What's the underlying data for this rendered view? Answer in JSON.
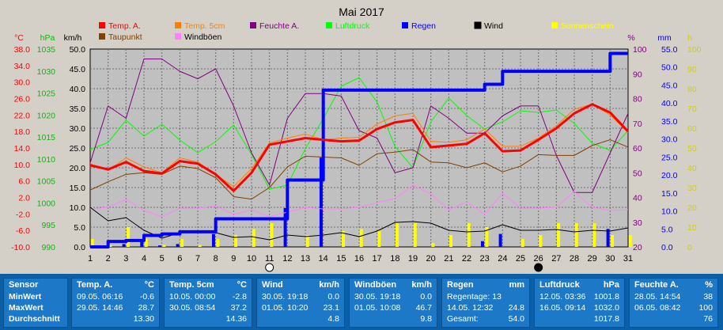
{
  "chart_data": {
    "type": "line",
    "title": "Mai 2017",
    "x": [
      1,
      2,
      3,
      4,
      5,
      6,
      7,
      8,
      9,
      10,
      11,
      12,
      13,
      14,
      15,
      16,
      17,
      18,
      19,
      20,
      21,
      22,
      23,
      24,
      25,
      26,
      27,
      28,
      29,
      30,
      31
    ],
    "axes": {
      "temp": {
        "label": "°C",
        "color": "#ff0000",
        "ticks": [
          "38.0",
          "34.0",
          "30.0",
          "26.0",
          "22.0",
          "18.0",
          "14.0",
          "10.0",
          "6.0",
          "2.0",
          "-2.0",
          "-6.0",
          "-10.0"
        ],
        "range": [
          -10,
          38
        ]
      },
      "press": {
        "label": "hPa",
        "color": "#00c000",
        "ticks": [
          "1035",
          "1030",
          "1025",
          "1020",
          "1015",
          "1010",
          "1005",
          "1000",
          "995",
          "990"
        ],
        "range": [
          990,
          1040
        ]
      },
      "wind": {
        "label": "km/h",
        "color": "#000000",
        "ticks": [
          "50.0",
          "45.0",
          "40.0",
          "35.0",
          "30.0",
          "25.0",
          "20.0",
          "15.0",
          "10.0",
          "5.0",
          "0.0"
        ],
        "range": [
          0,
          50
        ]
      },
      "hum": {
        "label": "%",
        "color": "#800080",
        "ticks": [
          "100",
          "90",
          "80",
          "70",
          "60",
          "50",
          "40",
          "30",
          "20"
        ],
        "range": [
          20,
          100
        ]
      },
      "rain": {
        "label": "mm",
        "color": "#0000ff",
        "ticks": [
          "55.0",
          "50.0",
          "45.0",
          "40.0",
          "35.0",
          "30.0",
          "25.0",
          "20.0",
          "15.0",
          "10.0",
          "5.0",
          "0.0"
        ],
        "range": [
          0,
          55
        ]
      },
      "sun": {
        "label": "h",
        "color": "#d0d000",
        "ticks": [
          "100",
          "90",
          "80",
          "70",
          "60",
          "50",
          "40",
          "30",
          "20",
          "10",
          "0"
        ],
        "range": [
          0,
          100
        ]
      }
    },
    "legend": [
      {
        "name": "Temp. A.",
        "color": "#ff0000",
        "text_color": "#ff0000"
      },
      {
        "name": "Temp. 5cm",
        "color": "#ff8000",
        "text_color": "#ff8000"
      },
      {
        "name": "Feuchte A.",
        "color": "#800080",
        "text_color": "#800080"
      },
      {
        "name": "Luftdruck",
        "color": "#00ff00",
        "text_color": "#00ff00"
      },
      {
        "name": "Regen",
        "color": "#0000ff",
        "text_color": "#0000ff"
      },
      {
        "name": "Wind",
        "color": "#000000",
        "text_color": "#000000"
      },
      {
        "name": "Sonnenschein",
        "color": "#ffff00",
        "text_color": "#ffff00"
      },
      {
        "name": "Taupunkt",
        "color": "#804000",
        "text_color": "#804000"
      },
      {
        "name": "Windböen",
        "color": "#ff80ff",
        "text_color": "#000000"
      }
    ],
    "series": [
      {
        "name": "Temp. A.",
        "axis": "temp",
        "color": "#ff0000",
        "width": 3,
        "values": [
          9.8,
          8.8,
          10.6,
          8.4,
          7.8,
          10.8,
          10.2,
          7.6,
          3.6,
          8.0,
          14.8,
          15.6,
          16.4,
          16.0,
          15.6,
          15.8,
          18.6,
          20.2,
          20.8,
          14.2,
          14.6,
          15.0,
          17.6,
          13.2,
          13.4,
          16.0,
          18.8,
          22.4,
          24.6,
          22.6,
          18.0
        ]
      },
      {
        "name": "Temp. 5cm",
        "axis": "temp",
        "color": "#ff8000",
        "width": 1,
        "values": [
          10.2,
          8.6,
          11.6,
          9.4,
          8.0,
          11.6,
          10.6,
          7.6,
          4.6,
          9.0,
          15.2,
          16.4,
          17.4,
          16.0,
          16.4,
          16.6,
          19.8,
          21.8,
          22.4,
          15.6,
          15.4,
          16.0,
          18.6,
          14.4,
          14.4,
          16.4,
          19.4,
          23.4,
          24.6,
          22.0,
          17.8
        ]
      },
      {
        "name": "Taupunkt",
        "axis": "temp",
        "color": "#804000",
        "width": 1,
        "values": [
          3.8,
          5.8,
          7.6,
          8.0,
          7.6,
          9.6,
          9.0,
          6.8,
          2.2,
          1.6,
          4.4,
          9.4,
          12.0,
          11.8,
          11.6,
          9.8,
          12.6,
          13.0,
          13.6,
          10.6,
          10.4,
          9.2,
          10.4,
          8.2,
          9.6,
          12.4,
          12.2,
          12.2,
          14.6,
          16.0,
          14.2
        ]
      },
      {
        "name": "Feuchte A.",
        "axis": "hum",
        "color": "#800080",
        "width": 1,
        "values": [
          54,
          77,
          72,
          96,
          96,
          91,
          88,
          92,
          77,
          58,
          45,
          72,
          82,
          82,
          81,
          67,
          64,
          50,
          52,
          77,
          72,
          66,
          66,
          73,
          77,
          77,
          57,
          42,
          42,
          58,
          74
        ]
      },
      {
        "name": "Luftdruck",
        "axis": "press",
        "color": "#00ff00",
        "width": 1,
        "values": [
          1014.6,
          1016.4,
          1022.0,
          1018.0,
          1021.0,
          1017.0,
          1013.8,
          1016.6,
          1020.8,
          1013.4,
          1004.6,
          1005.6,
          1014.8,
          1022.4,
          1030.6,
          1032.8,
          1026.6,
          1015.4,
          1010.0,
          1021.6,
          1027.6,
          1023.2,
          1019.8,
          1021.6,
          1024.4,
          1024.0,
          1024.6,
          1021.2,
          1016.2,
          1014.4,
          1019.4
        ]
      },
      {
        "name": "Wind",
        "axis": "wind",
        "color": "#000000",
        "width": 1,
        "values": [
          10.0,
          6.6,
          7.4,
          4.2,
          2.2,
          3.6,
          3.6,
          3.6,
          2.4,
          2.6,
          1.8,
          3.0,
          2.6,
          3.0,
          3.6,
          2.6,
          4.0,
          6.2,
          6.4,
          6.0,
          4.2,
          3.8,
          4.0,
          5.6,
          4.2,
          4.2,
          4.4,
          3.8,
          4.2,
          4.0,
          4.8
        ]
      },
      {
        "name": "Windböen",
        "axis": "wind",
        "color": "#ff80ff",
        "width": 1,
        "values": [
          9.6,
          10.0,
          12.0,
          9.2,
          7.6,
          9.8,
          9.8,
          10.4,
          8.2,
          9.4,
          7.6,
          8.8,
          10.0,
          9.6,
          9.6,
          10.0,
          11.2,
          12.2,
          15.6,
          13.4,
          9.4,
          11.4,
          8.2,
          13.6,
          9.8,
          9.8,
          10.0,
          14.0,
          10.0,
          9.2,
          9.4
        ]
      },
      {
        "name": "Regen",
        "axis": "rain",
        "color": "#0000ff",
        "width": 4,
        "step": true,
        "values": [
          0.0,
          1.5,
          1.8,
          3.2,
          3.6,
          4.2,
          4.2,
          7.8,
          7.8,
          7.8,
          7.8,
          18.6,
          18.6,
          43.6,
          43.6,
          43.6,
          43.6,
          43.6,
          43.6,
          43.6,
          43.6,
          43.6,
          45.2,
          48.8,
          48.8,
          48.8,
          48.8,
          48.8,
          48.8,
          53.8,
          53.8
        ]
      }
    ],
    "bars": [
      {
        "name": "Sonnenschein",
        "axis": "sun",
        "color": "#ffff00",
        "offset": 0.12,
        "values": [
          4,
          1,
          10,
          4,
          1,
          4,
          1,
          4,
          6,
          9,
          12,
          0,
          6,
          0,
          8,
          9,
          8,
          12,
          12,
          2,
          6,
          12,
          10,
          0,
          4,
          6,
          12,
          12,
          12,
          6,
          6
        ]
      },
      {
        "name": "Regen täglich",
        "axis": "rain",
        "color": "#0000ff",
        "offset": -0.12,
        "values": [
          0,
          0.4,
          0.8,
          1.4,
          0.4,
          0.8,
          0,
          3.6,
          0,
          0,
          0,
          10.8,
          0,
          24.8,
          0,
          0,
          0,
          0,
          0,
          0,
          0,
          0,
          1.6,
          3.6,
          0,
          0,
          0,
          0,
          0,
          5.0,
          0
        ]
      }
    ],
    "moon_markers": [
      {
        "day": 11,
        "phase": "full"
      },
      {
        "day": 26,
        "phase": "new"
      }
    ]
  },
  "stats": {
    "labels": {
      "header": "Sensor",
      "min": "MinWert",
      "max": "MaxWert",
      "avg": "Durchschnitt"
    },
    "panels": [
      {
        "title": "Temp. A.",
        "unit": "°C",
        "min_date": "09.05.",
        "min_time": "06:16",
        "min_val": "-0.6",
        "max_date": "29.05.",
        "max_time": "14:46",
        "max_val": "28.7",
        "avg": "13.30"
      },
      {
        "title": "Temp. 5cm",
        "unit": "°C",
        "min_date": "10.05.",
        "min_time": "00:00",
        "min_val": "-2.8",
        "max_date": "30.05.",
        "max_time": "08:54",
        "max_val": "37.2",
        "avg": "14.36"
      },
      {
        "title": "Wind",
        "unit": "km/h",
        "min_date": "30.05.",
        "min_time": "19:18",
        "min_val": "0.0",
        "max_date": "01.05.",
        "max_time": "10:20",
        "max_val": "23.1",
        "avg": "4.8"
      },
      {
        "title": "Windböen",
        "unit": "km/h",
        "min_date": "30.05.",
        "min_time": "19:18",
        "min_val": "0.0",
        "max_date": "01.05.",
        "max_time": "10:08",
        "max_val": "46.7",
        "avg": "9.8"
      },
      {
        "title": "Regen",
        "unit": "mm",
        "min_date": "Regentage: 13",
        "min_time": "",
        "min_val": "",
        "max_date": "14.05.",
        "max_time": "12:32",
        "max_val": "24.8",
        "avg_label": "Gesamt:",
        "avg": "54.0"
      },
      {
        "title": "Luftdruck",
        "unit": "hPa",
        "min_date": "12.05.",
        "min_time": "03:36",
        "min_val": "1001.8",
        "max_date": "16.05.",
        "max_time": "09:14",
        "max_val": "1032.0",
        "avg": "1017.8"
      },
      {
        "title": "Feuchte A.",
        "unit": "%",
        "min_date": "28.05.",
        "min_time": "14:54",
        "min_val": "38",
        "max_date": "06.05.",
        "max_time": "08:42",
        "max_val": "100",
        "avg": "76"
      }
    ]
  }
}
